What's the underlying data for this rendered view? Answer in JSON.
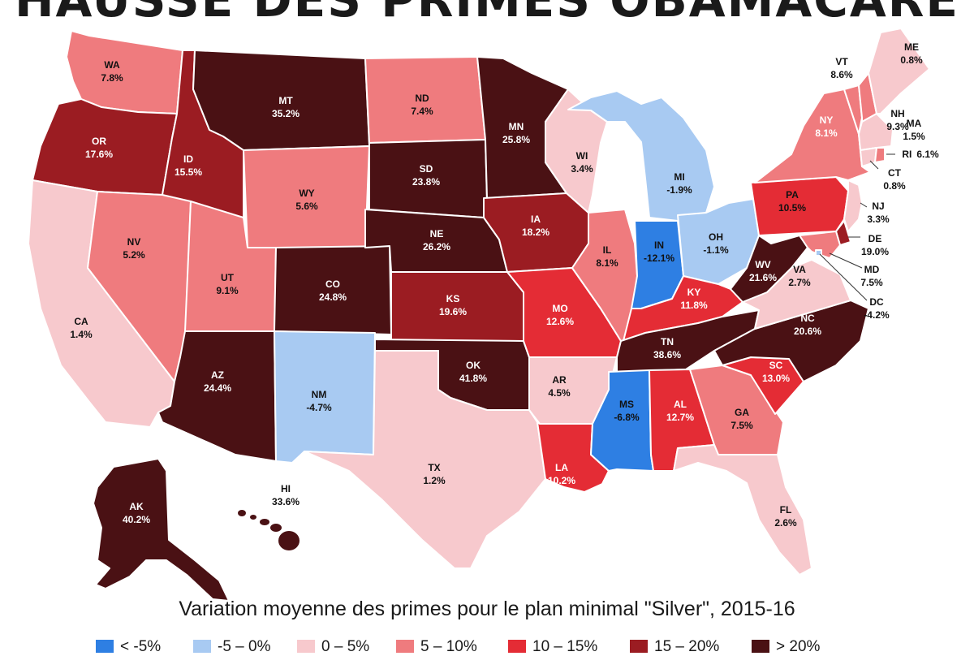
{
  "title": "HAUSSE DES PRIMES OBAMACARE",
  "subtitle": "Variation moyenne des primes pour le plan minimal \"Silver\", 2015-16",
  "colors": {
    "neg_big": "#2e7fe3",
    "neg_small": "#a8caf2",
    "c0_5": "#f7c9cd",
    "c5_10": "#ef7b7e",
    "c10_15": "#e42c35",
    "c15_20": "#9b1c22",
    "c20plus": "#4a1114"
  },
  "legend": [
    {
      "label": "< -5%",
      "color": "#2e7fe3"
    },
    {
      "label": "-5 – 0%",
      "color": "#a8caf2"
    },
    {
      "label": "0 – 5%",
      "color": "#f7c9cd"
    },
    {
      "label": "5 – 10%",
      "color": "#ef7b7e"
    },
    {
      "label": "10 – 15%",
      "color": "#e42c35"
    },
    {
      "label": "15 – 20%",
      "color": "#9b1c22"
    },
    {
      "label": "> 20%",
      "color": "#4a1114"
    }
  ],
  "states": {
    "WA": {
      "abbr": "WA",
      "value": "7.8%"
    },
    "OR": {
      "abbr": "OR",
      "value": "17.6%"
    },
    "CA": {
      "abbr": "CA",
      "value": "1.4%"
    },
    "ID": {
      "abbr": "ID",
      "value": "15.5%"
    },
    "NV": {
      "abbr": "NV",
      "value": "5.2%"
    },
    "MT": {
      "abbr": "MT",
      "value": "35.2%"
    },
    "WY": {
      "abbr": "WY",
      "value": "5.6%"
    },
    "UT": {
      "abbr": "UT",
      "value": "9.1%"
    },
    "AZ": {
      "abbr": "AZ",
      "value": "24.4%"
    },
    "CO": {
      "abbr": "CO",
      "value": "24.8%"
    },
    "NM": {
      "abbr": "NM",
      "value": "-4.7%"
    },
    "ND": {
      "abbr": "ND",
      "value": "7.4%"
    },
    "SD": {
      "abbr": "SD",
      "value": "23.8%"
    },
    "NE": {
      "abbr": "NE",
      "value": "26.2%"
    },
    "KS": {
      "abbr": "KS",
      "value": "19.6%"
    },
    "OK": {
      "abbr": "OK",
      "value": "41.8%"
    },
    "TX": {
      "abbr": "TX",
      "value": "1.2%"
    },
    "MN": {
      "abbr": "MN",
      "value": "25.8%"
    },
    "IA": {
      "abbr": "IA",
      "value": "18.2%"
    },
    "MO": {
      "abbr": "MO",
      "value": "12.6%"
    },
    "AR": {
      "abbr": "AR",
      "value": "4.5%"
    },
    "LA": {
      "abbr": "LA",
      "value": "10.2%"
    },
    "WI": {
      "abbr": "WI",
      "value": "3.4%"
    },
    "IL": {
      "abbr": "IL",
      "value": "8.1%"
    },
    "MI": {
      "abbr": "MI",
      "value": "-1.9%"
    },
    "IN": {
      "abbr": "IN",
      "value": "-12.1%"
    },
    "OH": {
      "abbr": "OH",
      "value": "-1.1%"
    },
    "KY": {
      "abbr": "KY",
      "value": "11.8%"
    },
    "TN": {
      "abbr": "TN",
      "value": "38.6%"
    },
    "MS": {
      "abbr": "MS",
      "value": "-6.8%"
    },
    "AL": {
      "abbr": "AL",
      "value": "12.7%"
    },
    "GA": {
      "abbr": "GA",
      "value": "7.5%"
    },
    "FL": {
      "abbr": "FL",
      "value": "2.6%"
    },
    "SC": {
      "abbr": "SC",
      "value": "13.0%"
    },
    "NC": {
      "abbr": "NC",
      "value": "20.6%"
    },
    "VA": {
      "abbr": "VA",
      "value": "2.7%"
    },
    "WV": {
      "abbr": "WV",
      "value": "21.6%"
    },
    "PA": {
      "abbr": "PA",
      "value": "10.5%"
    },
    "NY": {
      "abbr": "NY",
      "value": "8.1%"
    },
    "VT": {
      "abbr": "VT",
      "value": "8.6%"
    },
    "NH": {
      "abbr": "NH",
      "value": "9.3%"
    },
    "ME": {
      "abbr": "ME",
      "value": "0.8%"
    },
    "MA": {
      "abbr": "MA",
      "value": "1.5%"
    },
    "RI": {
      "abbr": "RI",
      "value": "6.1%"
    },
    "CT": {
      "abbr": "CT",
      "value": "0.8%"
    },
    "NJ": {
      "abbr": "NJ",
      "value": "3.3%"
    },
    "DE": {
      "abbr": "DE",
      "value": "19.0%"
    },
    "MD": {
      "abbr": "MD",
      "value": "7.5%"
    },
    "DC": {
      "abbr": "DC",
      "value": "-4.2%"
    },
    "AK": {
      "abbr": "AK",
      "value": "40.2%"
    },
    "HI": {
      "abbr": "HI",
      "value": "33.6%"
    }
  }
}
